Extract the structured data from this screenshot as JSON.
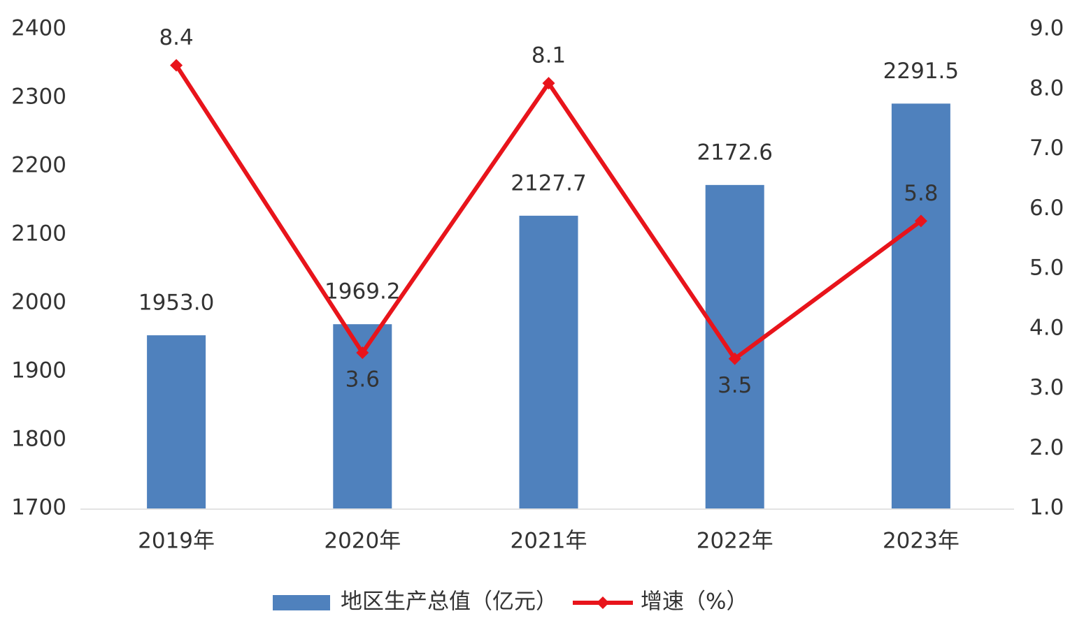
{
  "chart_data": {
    "type": "combo",
    "categories": [
      "2019年",
      "2020年",
      "2021年",
      "2022年",
      "2023年"
    ],
    "series": [
      {
        "name": "地区生产总值（亿元）",
        "type": "bar",
        "color": "#4f81bd",
        "values": [
          1953.0,
          1969.2,
          2127.7,
          2172.6,
          2291.5
        ],
        "value_labels": [
          "1953.0",
          "1969.2",
          "2127.7",
          "2172.6",
          "2291.5"
        ]
      },
      {
        "name": "增速（%）",
        "type": "line",
        "axis": "y2",
        "color": "#e8141b",
        "values": [
          8.4,
          3.6,
          8.1,
          3.5,
          5.8
        ]
      }
    ],
    "ylim": [
      1700,
      2400
    ],
    "yticks": [
      1700,
      1800,
      1900,
      2000,
      2100,
      2200,
      2300,
      2400
    ],
    "y2lim": [
      1.0,
      9.0
    ],
    "y2ticks": [
      {
        "value": 1,
        "label": "1.0"
      },
      {
        "value": 2,
        "label": "2.0"
      },
      {
        "value": 3,
        "label": "3.0"
      },
      {
        "value": 4,
        "label": "4.0"
      },
      {
        "value": 5,
        "label": "5.0"
      },
      {
        "value": 6,
        "label": "6.0"
      },
      {
        "value": 7,
        "label": "7.0"
      },
      {
        "value": 8,
        "label": "8.0"
      },
      {
        "value": 9,
        "label": "9.0"
      }
    ],
    "grid": false,
    "legend": "bottom"
  }
}
